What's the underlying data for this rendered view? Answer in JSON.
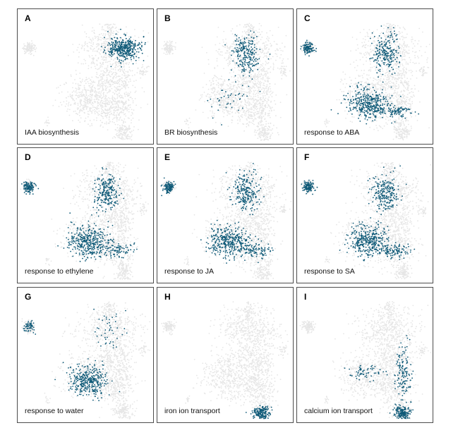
{
  "colors": {
    "background_cells": "#e6e6e6",
    "highlight_cells": "#0f5a78",
    "frame": "#4d4d4d"
  },
  "chart_data": [
    {
      "type": "scatter",
      "label": "A",
      "title": "IAA biosynthesis",
      "highlight_regions": [
        "top-right-cluster"
      ]
    },
    {
      "type": "scatter",
      "label": "B",
      "title": "BR biosynthesis",
      "highlight_regions": [
        "top-center-cluster",
        "left-lobe-scattered"
      ]
    },
    {
      "type": "scatter",
      "label": "C",
      "title": "response to ABA",
      "highlight_regions": [
        "left-blob",
        "top-center-cluster",
        "left-lobe",
        "bottom-lobe-edge"
      ]
    },
    {
      "type": "scatter",
      "label": "D",
      "title": "response to ethylene",
      "highlight_regions": [
        "left-blob",
        "top-center-cluster",
        "left-lobe",
        "bottom-lobe-edge"
      ]
    },
    {
      "type": "scatter",
      "label": "E",
      "title": "response to JA",
      "highlight_regions": [
        "left-blob",
        "top-center-cluster",
        "left-lobe",
        "bottom-lobe-edge"
      ]
    },
    {
      "type": "scatter",
      "label": "F",
      "title": "response to SA",
      "highlight_regions": [
        "left-blob",
        "top-center-cluster",
        "left-lobe",
        "bottom-lobe-edge"
      ]
    },
    {
      "type": "scatter",
      "label": "G",
      "title": "response to water",
      "highlight_regions": [
        "left-blob-partial",
        "left-lobe",
        "top-center-scattered"
      ]
    },
    {
      "type": "scatter",
      "label": "H",
      "title": "iron ion transport",
      "highlight_regions": [
        "bottom-tail"
      ]
    },
    {
      "type": "scatter",
      "label": "I",
      "title": "calcium ion transport",
      "highlight_regions": [
        "bottom-tail",
        "right-edge-lobe",
        "left-lobe-edge"
      ]
    }
  ]
}
